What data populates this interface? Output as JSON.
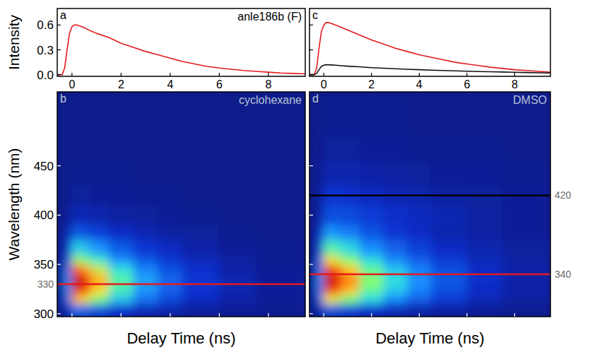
{
  "chart_data": [
    {
      "type": "line",
      "panel": "a",
      "title": "anle186b (F)",
      "y_label": "Intensity",
      "x": [
        -0.6,
        -0.4,
        -0.3,
        -0.2,
        -0.1,
        0,
        0.1,
        0.2,
        0.3,
        0.5,
        0.75,
        1,
        1.5,
        2,
        2.5,
        3,
        3.5,
        4,
        4.5,
        5,
        5.5,
        6,
        6.5,
        7,
        7.5,
        8,
        8.5,
        9,
        9.5
      ],
      "series": [
        {
          "color": "#e41a1c",
          "values": [
            0,
            0.0,
            0.08,
            0.3,
            0.5,
            0.58,
            0.6,
            0.6,
            0.59,
            0.57,
            0.53,
            0.5,
            0.45,
            0.38,
            0.33,
            0.28,
            0.24,
            0.2,
            0.16,
            0.13,
            0.1,
            0.08,
            0.065,
            0.05,
            0.04,
            0.03,
            0.02,
            0.015,
            0.01
          ]
        }
      ],
      "xlim": [
        -0.6,
        9.5
      ],
      "ylim": [
        -0.02,
        0.8
      ],
      "xticks": [
        0,
        2,
        4,
        6,
        8
      ],
      "yticks": [
        {
          "value": 0,
          "label": "0.0"
        },
        0.3,
        0.6
      ],
      "tick_labels": true
    },
    {
      "type": "heatmap",
      "panel": "b",
      "title": "cyclohexane",
      "y_label": "Wavelength (nm)",
      "x_label": "Delay Time (ns)",
      "x_edges": [
        -0.6,
        -0.3,
        0,
        0.4,
        0.8,
        1.5,
        2.5,
        3.5,
        4.5,
        6,
        7.5,
        9.5
      ],
      "y_edges": [
        297,
        310,
        320,
        330,
        340,
        350,
        360,
        375,
        390,
        410,
        430,
        455,
        480,
        525
      ],
      "cells": [
        [
          0,
          0.08,
          0.25,
          0.22,
          0.19,
          0.13,
          0.08,
          0.06,
          0.03,
          0.02,
          0.01
        ],
        [
          0,
          0.23,
          0.75,
          0.68,
          0.56,
          0.38,
          0.25,
          0.17,
          0.1,
          0.05,
          0.02
        ],
        [
          0,
          0.29,
          0.95,
          0.86,
          0.71,
          0.48,
          0.31,
          0.21,
          0.12,
          0.06,
          0.02
        ],
        [
          0,
          0.3,
          1,
          0.9,
          0.75,
          0.5,
          0.33,
          0.22,
          0.13,
          0.06,
          0.02
        ],
        [
          0,
          0.26,
          0.85,
          0.77,
          0.64,
          0.43,
          0.28,
          0.19,
          0.11,
          0.05,
          0.02
        ],
        [
          0,
          0.18,
          0.6,
          0.54,
          0.45,
          0.3,
          0.2,
          0.13,
          0.08,
          0.04,
          0.01
        ],
        [
          0,
          0.12,
          0.4,
          0.36,
          0.3,
          0.2,
          0.13,
          0.09,
          0.05,
          0.02,
          0.01
        ],
        [
          0,
          0.06,
          0.2,
          0.18,
          0.15,
          0.1,
          0.07,
          0.04,
          0.03,
          0.01,
          0
        ],
        [
          0,
          0.02,
          0.08,
          0.07,
          0.06,
          0.04,
          0.03,
          0.02,
          0.01,
          0,
          0
        ],
        [
          0,
          0.01,
          0.03,
          0.03,
          0.02,
          0.02,
          0.01,
          0.01,
          0,
          0,
          0
        ],
        [
          0,
          0,
          0.01,
          0.01,
          0.01,
          0.01,
          0,
          0,
          0,
          0,
          0
        ],
        [
          0,
          0,
          0,
          0,
          0,
          0,
          0,
          0,
          0,
          0,
          0
        ],
        [
          0,
          0,
          0,
          0,
          0,
          0,
          0,
          0,
          0,
          0,
          0
        ]
      ],
      "zlim": [
        0,
        1
      ],
      "xlim": [
        -0.6,
        9.5
      ],
      "ylim": [
        297,
        525
      ],
      "xticks": [
        0,
        2,
        4,
        6,
        8
      ],
      "yticks": [
        300,
        350,
        400,
        450
      ],
      "tick_labels": "y",
      "hlines": [
        {
          "value": 330,
          "color": "#e41a1c"
        }
      ]
    },
    {
      "type": "line",
      "panel": "c",
      "x": [
        -0.6,
        -0.4,
        -0.3,
        -0.2,
        -0.1,
        0,
        0.1,
        0.2,
        0.3,
        0.5,
        0.75,
        1,
        1.5,
        2,
        2.5,
        3,
        3.5,
        4,
        4.5,
        5,
        5.5,
        6,
        6.5,
        7,
        7.5,
        8,
        8.5,
        9,
        9.5
      ],
      "series": [
        {
          "color": "#e41a1c",
          "values": [
            0,
            0.0,
            0.08,
            0.32,
            0.52,
            0.6,
            0.63,
            0.63,
            0.62,
            0.6,
            0.57,
            0.54,
            0.48,
            0.42,
            0.37,
            0.32,
            0.28,
            0.24,
            0.21,
            0.18,
            0.15,
            0.13,
            0.11,
            0.09,
            0.075,
            0.06,
            0.05,
            0.04,
            0.03
          ]
        },
        {
          "color": "#111111",
          "values": [
            0,
            0.0,
            0.015,
            0.06,
            0.1,
            0.115,
            0.12,
            0.12,
            0.118,
            0.114,
            0.108,
            0.103,
            0.095,
            0.085,
            0.078,
            0.072,
            0.066,
            0.06,
            0.055,
            0.05,
            0.046,
            0.042,
            0.038,
            0.035,
            0.032,
            0.029,
            0.026,
            0.023,
            0.02
          ]
        }
      ],
      "xlim": [
        -0.6,
        9.5
      ],
      "ylim": [
        -0.02,
        0.8
      ],
      "xticks": [
        0,
        2,
        4,
        6,
        8
      ],
      "yticks": [
        0,
        0.3,
        0.6
      ],
      "tick_labels": "x"
    },
    {
      "type": "heatmap",
      "panel": "d",
      "title": "DMSO",
      "x_label": "Delay Time (ns)",
      "x_edges": [
        -0.6,
        -0.3,
        0,
        0.4,
        0.8,
        1.5,
        2.5,
        3.5,
        4.5,
        6,
        7.5,
        9.5
      ],
      "y_edges": [
        297,
        310,
        320,
        330,
        340,
        350,
        360,
        375,
        390,
        410,
        430,
        455,
        480,
        525
      ],
      "cells": [
        [
          0,
          0.06,
          0.2,
          0.18,
          0.16,
          0.12,
          0.08,
          0.06,
          0.04,
          0.02,
          0.01
        ],
        [
          0,
          0.21,
          0.7,
          0.64,
          0.56,
          0.41,
          0.29,
          0.21,
          0.14,
          0.08,
          0.04
        ],
        [
          0,
          0.28,
          0.92,
          0.85,
          0.74,
          0.53,
          0.39,
          0.28,
          0.18,
          0.1,
          0.05
        ],
        [
          0,
          0.3,
          1,
          0.92,
          0.8,
          0.58,
          0.42,
          0.3,
          0.2,
          0.11,
          0.05
        ],
        [
          0,
          0.27,
          0.9,
          0.83,
          0.72,
          0.52,
          0.38,
          0.27,
          0.18,
          0.1,
          0.05
        ],
        [
          0,
          0.21,
          0.7,
          0.64,
          0.56,
          0.41,
          0.29,
          0.21,
          0.14,
          0.08,
          0.04
        ],
        [
          0,
          0.15,
          0.5,
          0.46,
          0.4,
          0.29,
          0.21,
          0.15,
          0.1,
          0.06,
          0.03
        ],
        [
          0,
          0.1,
          0.32,
          0.29,
          0.26,
          0.19,
          0.13,
          0.1,
          0.06,
          0.04,
          0.02
        ],
        [
          0,
          0.05,
          0.18,
          0.18,
          0.17,
          0.14,
          0.11,
          0.09,
          0.07,
          0.04,
          0.02
        ],
        [
          0,
          0.03,
          0.12,
          0.12,
          0.11,
          0.09,
          0.07,
          0.06,
          0.04,
          0.03,
          0.02
        ],
        [
          0,
          0.02,
          0.06,
          0.06,
          0.06,
          0.05,
          0.04,
          0.03,
          0.02,
          0.02,
          0.01
        ],
        [
          0,
          0.01,
          0.03,
          0.03,
          0.03,
          0.02,
          0.02,
          0.01,
          0.01,
          0.01,
          0
        ],
        [
          0,
          0,
          0.01,
          0.01,
          0.01,
          0.01,
          0.01,
          0,
          0,
          0,
          0
        ]
      ],
      "zlim": [
        0,
        1
      ],
      "xlim": [
        -0.6,
        9.5
      ],
      "ylim": [
        297,
        525
      ],
      "xticks": [
        0,
        2,
        4,
        6,
        8
      ],
      "yticks": [
        300,
        350,
        400,
        450
      ],
      "tick_labels": false,
      "hlines": [
        {
          "value": 420,
          "color": "#000000"
        },
        {
          "value": 340,
          "color": "#e41a1c"
        }
      ]
    }
  ]
}
